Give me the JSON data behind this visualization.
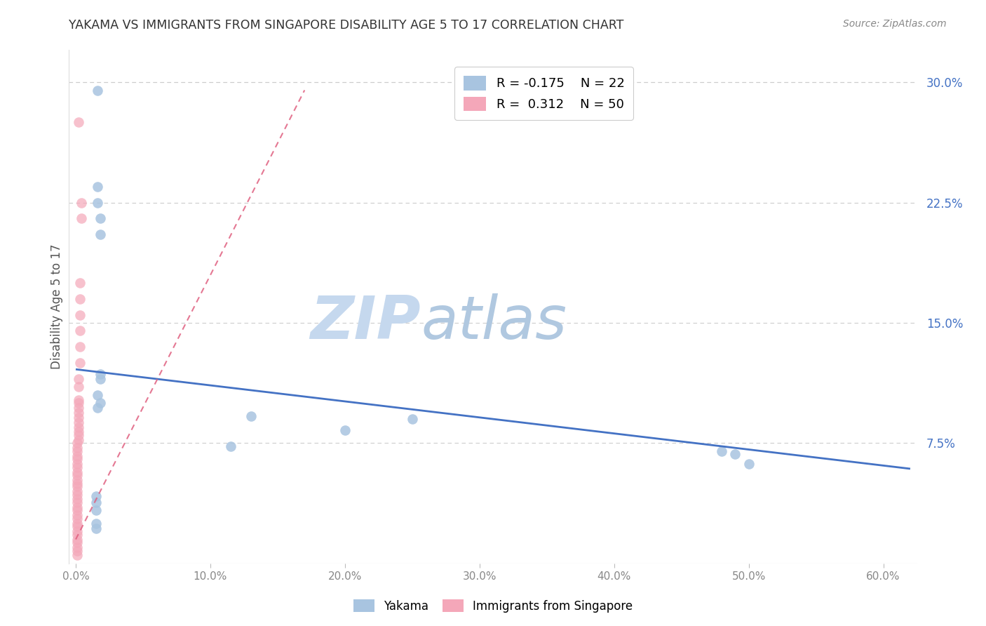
{
  "title": "YAKAMA VS IMMIGRANTS FROM SINGAPORE DISABILITY AGE 5 TO 17 CORRELATION CHART",
  "source": "Source: ZipAtlas.com",
  "ylabel_label": "Disability Age 5 to 17",
  "x_tick_values": [
    0.0,
    0.1,
    0.2,
    0.3,
    0.4,
    0.5,
    0.6
  ],
  "y_tick_labels": [
    "7.5%",
    "15.0%",
    "22.5%",
    "30.0%"
  ],
  "y_tick_values": [
    0.075,
    0.15,
    0.225,
    0.3
  ],
  "ylim": [
    0.0,
    0.32
  ],
  "xlim": [
    -0.005,
    0.625
  ],
  "yakama_R": -0.175,
  "yakama_N": 22,
  "singapore_R": 0.312,
  "singapore_N": 50,
  "yakama_color": "#a8c4e0",
  "singapore_color": "#f4a7b9",
  "trend_yakama_color": "#4472c4",
  "trend_singapore_color": "#e06080",
  "watermark_zip": "ZIP",
  "watermark_atlas": "atlas",
  "watermark_color_zip": "#c8d8ec",
  "watermark_color_atlas": "#b8c8dc",
  "grid_color": "#cccccc",
  "yakama_x": [
    0.016,
    0.016,
    0.016,
    0.018,
    0.018,
    0.018,
    0.018,
    0.016,
    0.018,
    0.016,
    0.13,
    0.115,
    0.2,
    0.25,
    0.48,
    0.49,
    0.5,
    0.015,
    0.015,
    0.015,
    0.015,
    0.015
  ],
  "yakama_y": [
    0.295,
    0.235,
    0.225,
    0.215,
    0.205,
    0.115,
    0.118,
    0.105,
    0.1,
    0.097,
    0.092,
    0.073,
    0.083,
    0.09,
    0.07,
    0.068,
    0.062,
    0.042,
    0.038,
    0.033,
    0.025,
    0.022
  ],
  "singapore_x": [
    0.002,
    0.004,
    0.004,
    0.003,
    0.003,
    0.003,
    0.003,
    0.003,
    0.003,
    0.002,
    0.002,
    0.002,
    0.002,
    0.002,
    0.002,
    0.002,
    0.002,
    0.002,
    0.002,
    0.002,
    0.002,
    0.001,
    0.001,
    0.001,
    0.001,
    0.001,
    0.001,
    0.001,
    0.001,
    0.001,
    0.001,
    0.001,
    0.001,
    0.001,
    0.001,
    0.001,
    0.001,
    0.001,
    0.001,
    0.001,
    0.001,
    0.001,
    0.001,
    0.001,
    0.001,
    0.001,
    0.001,
    0.001,
    0.001,
    0.001
  ],
  "singapore_y": [
    0.275,
    0.225,
    0.215,
    0.175,
    0.165,
    0.155,
    0.145,
    0.135,
    0.125,
    0.115,
    0.11,
    0.102,
    0.1,
    0.097,
    0.094,
    0.091,
    0.088,
    0.085,
    0.082,
    0.08,
    0.077,
    0.075,
    0.072,
    0.07,
    0.067,
    0.065,
    0.062,
    0.06,
    0.057,
    0.055,
    0.052,
    0.05,
    0.048,
    0.045,
    0.043,
    0.04,
    0.038,
    0.035,
    0.033,
    0.03,
    0.028,
    0.025,
    0.023,
    0.02,
    0.018,
    0.015,
    0.013,
    0.01,
    0.008,
    0.005
  ],
  "bg_color": "#ffffff",
  "title_color": "#333333",
  "axis_label_color": "#555555",
  "right_axis_color": "#4472c4",
  "xtick_color": "#888888",
  "yakama_trend_x0": 0.0,
  "yakama_trend_y0": 0.121,
  "yakama_trend_x1": 0.62,
  "yakama_trend_y1": 0.059,
  "singapore_trend_x0": 0.0,
  "singapore_trend_y0": 0.015,
  "singapore_trend_x1": 0.17,
  "singapore_trend_y1": 0.295
}
